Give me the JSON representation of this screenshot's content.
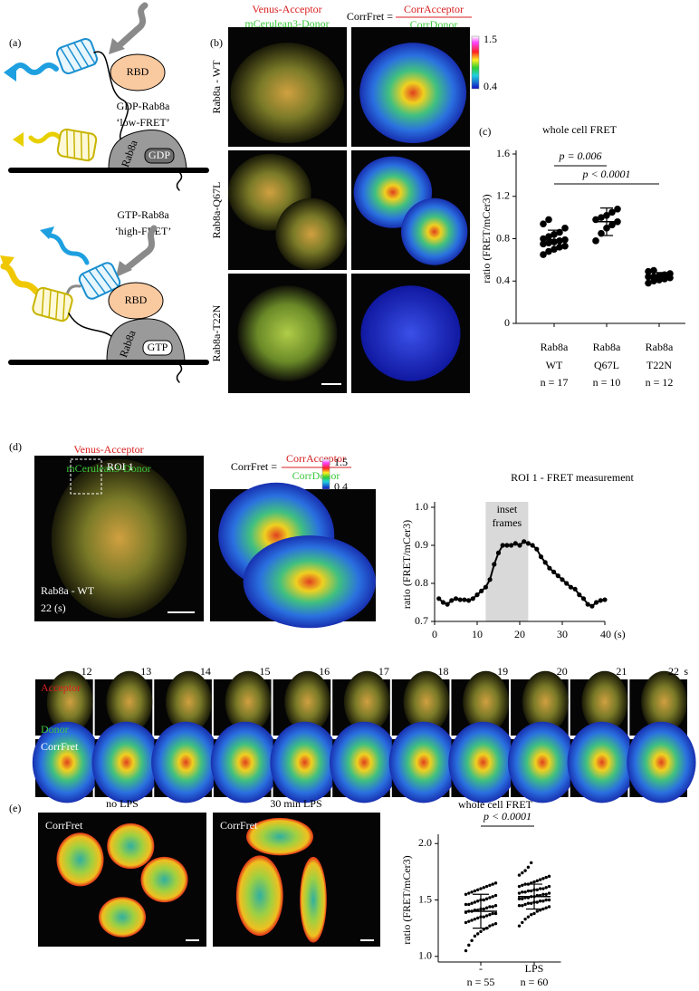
{
  "panel_a": {
    "label": "(a)",
    "top": {
      "rbd": "RBD",
      "state": "GDP-Rab8a",
      "fret": "‘low-FRET’",
      "gtpase": "Rab8a",
      "nucleotide": "GDP"
    },
    "bottom": {
      "rbd": "RBD",
      "state": "GTP-Rab8a",
      "fret": "‘high-FRET’",
      "gtpase": "Rab8a",
      "nucleotide": "GTP"
    }
  },
  "panel_b": {
    "label": "(b)",
    "acceptor": "Venus-Acceptor",
    "donor": "mCerulean3-Donor",
    "corrfret": "CorrFret =",
    "numerator": "CorrAcceptor",
    "denominator": "CorrDonor",
    "colorbar": {
      "max": 1.5,
      "min": 0.4
    },
    "rows": [
      "Rab8a - WT",
      "Rab8a-Q67L",
      "Rab8a-T22N"
    ]
  },
  "panel_c": {
    "label": "(c)"
  },
  "panel_d": {
    "label": "(d)",
    "acceptor": "Venus-Acceptor",
    "donor": "mCerulean3-Donor",
    "corrfret": "CorrFret =",
    "numerator": "CorrAcceptor",
    "denominator": "CorrDonor",
    "colorbar": {
      "max": 1.5,
      "min": 0.4
    },
    "roi": "ROI 1",
    "image_caption": [
      "Rab8a - WT",
      "22 (s)"
    ],
    "timepoints": [
      12,
      13,
      14,
      15,
      16,
      17,
      18,
      19,
      20,
      21,
      22
    ],
    "time_unit": "s",
    "rows": {
      "acceptor": "Acceptor",
      "donor": "Donor",
      "corrfret": "CorrFret"
    }
  },
  "panel_e": {
    "label": "(e)",
    "images": [
      "no LPS",
      "30 min LPS"
    ],
    "image_label": "CorrFret"
  },
  "chart_data": [
    {
      "type": "strip",
      "title": "whole cell FRET",
      "ylabel": "ratio (FRET/mCer3)",
      "color": "#000000",
      "categories": [
        [
          "Rab8a",
          "WT"
        ],
        [
          "Rab8a",
          "Q67L"
        ],
        [
          "Rab8a",
          "T22N"
        ]
      ],
      "n_labels": [
        "n = 17",
        "n = 10",
        "n = 12"
      ],
      "values": [
        [
          0.65,
          0.68,
          0.7,
          0.72,
          0.73,
          0.75,
          0.76,
          0.77,
          0.78,
          0.79,
          0.8,
          0.82,
          0.84,
          0.86,
          0.9,
          0.94,
          0.98
        ],
        [
          0.78,
          0.85,
          0.9,
          0.93,
          0.96,
          0.98,
          1.0,
          1.02,
          1.05,
          1.08
        ],
        [
          0.38,
          0.4,
          0.41,
          0.42,
          0.43,
          0.44,
          0.44,
          0.45,
          0.46,
          0.47,
          0.49,
          0.5
        ]
      ],
      "means": [
        0.79,
        0.96,
        0.44
      ],
      "sd": [
        0.09,
        0.13,
        0.04
      ],
      "comparisons": [
        {
          "groups": [
            0,
            1
          ],
          "label": "p = 0.006"
        },
        {
          "groups": [
            0,
            2
          ],
          "label": "p < 0.0001"
        }
      ],
      "ylim": [
        0,
        1.6
      ],
      "yticks": [
        0,
        0.4,
        0.8,
        1.2,
        1.6
      ]
    },
    {
      "type": "line",
      "title": "ROI 1 - FRET measurement",
      "ylabel": "ratio (FRET/mCer3)",
      "color": "#000000",
      "x": [
        1,
        2,
        3,
        4,
        5,
        6,
        7,
        8,
        9,
        10,
        11,
        12,
        13,
        14,
        15,
        16,
        17,
        18,
        19,
        20,
        21,
        22,
        23,
        24,
        25,
        26,
        27,
        28,
        29,
        30,
        31,
        32,
        33,
        34,
        35,
        36,
        37,
        38,
        39,
        40
      ],
      "values": [
        0.76,
        0.75,
        0.745,
        0.755,
        0.76,
        0.757,
        0.757,
        0.755,
        0.76,
        0.77,
        0.78,
        0.79,
        0.81,
        0.85,
        0.88,
        0.9,
        0.9,
        0.9,
        0.905,
        0.9,
        0.91,
        0.905,
        0.9,
        0.89,
        0.87,
        0.855,
        0.84,
        0.83,
        0.82,
        0.81,
        0.8,
        0.79,
        0.785,
        0.77,
        0.76,
        0.745,
        0.74,
        0.75,
        0.755,
        0.757
      ],
      "shade": {
        "x": [
          12,
          22
        ],
        "label": [
          "inset",
          "frames"
        ],
        "color": "#d9d9d9"
      },
      "xlim": [
        0,
        40
      ],
      "xticks": [
        0,
        10,
        20,
        30,
        {
          "value": 40,
          "label": "40 (s)"
        }
      ],
      "ylim": [
        0.7,
        1.0
      ],
      "yticks": [
        0.7,
        0.8,
        0.9,
        {
          "value": 1.0,
          "label": "1.0"
        }
      ]
    },
    {
      "type": "strip",
      "title": "whole cell FRET",
      "ylabel": "ratio (FRET/mCer3)",
      "color": "#000000",
      "categories": [
        [
          "-"
        ],
        [
          "LPS"
        ]
      ],
      "n_labels": [
        "n = 55",
        "n = 60"
      ],
      "values": [
        [
          1.05,
          1.1,
          1.14,
          1.18,
          1.2,
          1.22,
          1.24,
          1.25,
          1.27,
          1.28,
          1.29,
          1.3,
          1.31,
          1.32,
          1.33,
          1.34,
          1.35,
          1.35,
          1.36,
          1.37,
          1.38,
          1.38,
          1.39,
          1.4,
          1.4,
          1.41,
          1.41,
          1.42,
          1.42,
          1.43,
          1.44,
          1.44,
          1.45,
          1.46,
          1.46,
          1.47,
          1.48,
          1.49,
          1.5,
          1.5,
          1.51,
          1.52,
          1.53,
          1.54,
          1.55,
          1.56,
          1.57,
          1.58,
          1.59,
          1.6,
          1.61,
          1.62,
          1.63,
          1.64,
          1.65
        ],
        [
          1.27,
          1.3,
          1.33,
          1.35,
          1.37,
          1.38,
          1.4,
          1.41,
          1.42,
          1.43,
          1.44,
          1.45,
          1.45,
          1.46,
          1.47,
          1.47,
          1.48,
          1.48,
          1.49,
          1.49,
          1.5,
          1.5,
          1.51,
          1.51,
          1.52,
          1.52,
          1.53,
          1.53,
          1.54,
          1.54,
          1.55,
          1.55,
          1.56,
          1.56,
          1.57,
          1.57,
          1.58,
          1.58,
          1.59,
          1.59,
          1.6,
          1.6,
          1.61,
          1.62,
          1.62,
          1.63,
          1.64,
          1.64,
          1.65,
          1.66,
          1.67,
          1.68,
          1.69,
          1.7,
          1.71,
          1.72,
          1.74,
          1.76,
          1.79,
          1.83
        ]
      ],
      "means": [
        1.4,
        1.53
      ],
      "sd": [
        0.15,
        0.11
      ],
      "comparisons": [
        {
          "groups": [
            0,
            1
          ],
          "label": "p < 0.0001"
        }
      ],
      "ylim": [
        0.95,
        2.05
      ],
      "yticks": [
        {
          "value": 1.0,
          "label": "1.0"
        },
        1.5,
        {
          "value": 2.0,
          "label": "2.0"
        }
      ]
    }
  ]
}
